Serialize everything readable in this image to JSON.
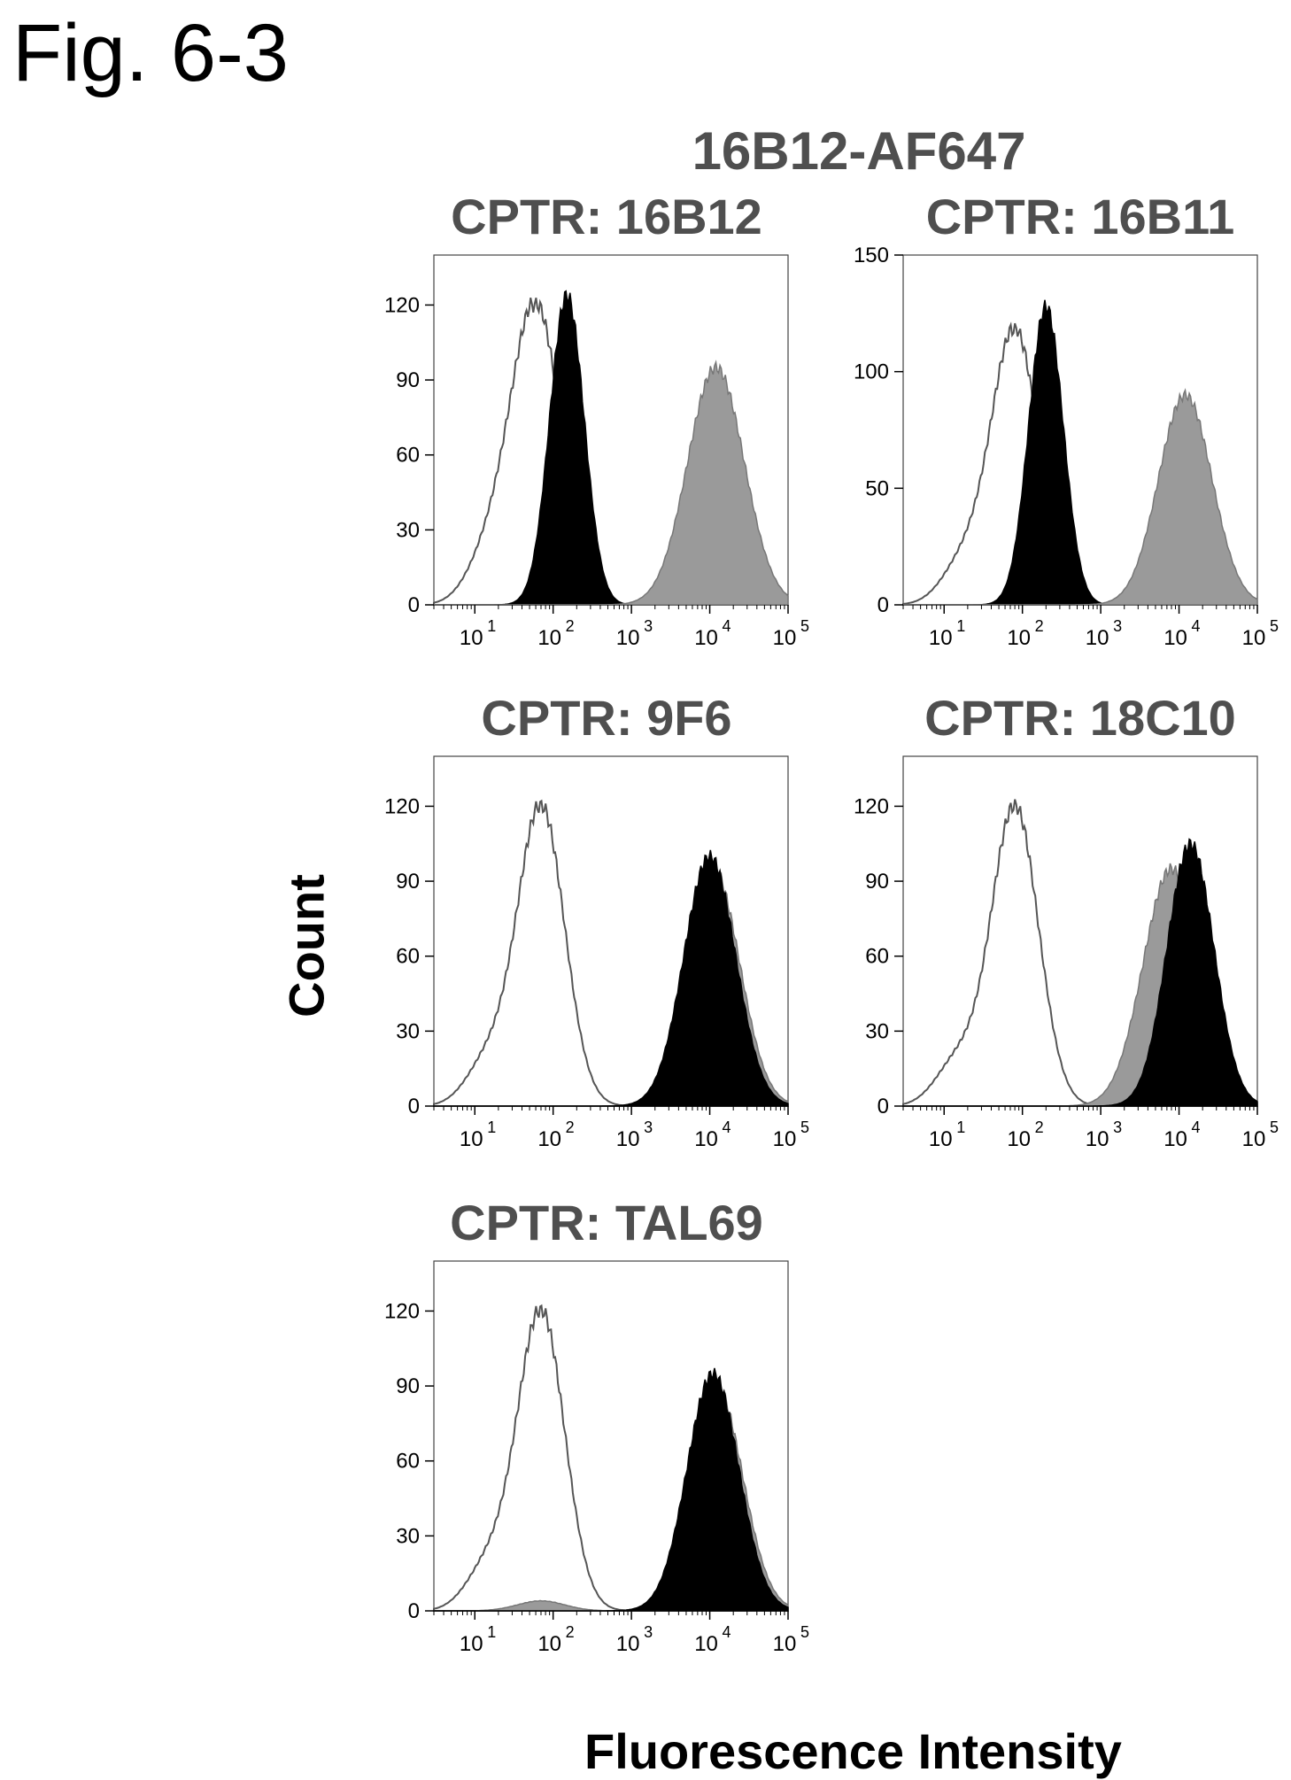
{
  "figure": {
    "label": "Fig. 6-3",
    "reagent": "16B12-AF647",
    "ylabel": "Count",
    "xlabel": "Fluorescence Intensity"
  },
  "colors": {
    "control_outline": "#555555",
    "black_fill": "#000000",
    "gray_fill": "#9a9a9a",
    "title_color": "#4f4f4f"
  },
  "chart_data": [
    {
      "type": "area",
      "title": "CPTR: 16B12",
      "x_scale": "log",
      "xlim": [
        3,
        100000
      ],
      "x_ticks": [
        "10^1",
        "10^2",
        "10^3",
        "10^4",
        "10^5"
      ],
      "ylim": [
        0,
        140
      ],
      "y_ticks": [
        0,
        30,
        60,
        90,
        120
      ],
      "series": [
        {
          "style": "outline",
          "peak_x": 60,
          "peak_y": 120,
          "width_log": 0.32,
          "shoulder_x": 15,
          "shoulder_y": 18
        },
        {
          "style": "black",
          "peak_x": 150,
          "peak_y": 124,
          "width_log": 0.22
        },
        {
          "style": "gray",
          "peak_x": 12000,
          "peak_y": 95,
          "width_log": 0.36
        }
      ]
    },
    {
      "type": "area",
      "title": "CPTR: 16B11",
      "x_scale": "log",
      "xlim": [
        3,
        100000
      ],
      "x_ticks": [
        "10^1",
        "10^2",
        "10^3",
        "10^4",
        "10^5"
      ],
      "ylim": [
        0,
        150
      ],
      "y_ticks": [
        0,
        50,
        100,
        150
      ],
      "series": [
        {
          "style": "outline",
          "peak_x": 80,
          "peak_y": 118,
          "width_log": 0.3,
          "shoulder_x": 18,
          "shoulder_y": 18
        },
        {
          "style": "black",
          "peak_x": 200,
          "peak_y": 128,
          "width_log": 0.22
        },
        {
          "style": "gray",
          "peak_x": 12000,
          "peak_y": 90,
          "width_log": 0.34
        }
      ]
    },
    {
      "type": "area",
      "title": "CPTR: 9F6",
      "x_scale": "log",
      "xlim": [
        3,
        100000
      ],
      "x_ticks": [
        "10^1",
        "10^2",
        "10^3",
        "10^4",
        "10^5"
      ],
      "ylim": [
        0,
        140
      ],
      "y_ticks": [
        0,
        30,
        60,
        90,
        120
      ],
      "series": [
        {
          "style": "outline",
          "peak_x": 70,
          "peak_y": 120,
          "width_log": 0.3,
          "shoulder_x": 15,
          "shoulder_y": 18
        },
        {
          "style": "gray",
          "peak_x": 11000,
          "peak_y": 95,
          "width_log": 0.34
        },
        {
          "style": "black",
          "peak_x": 10000,
          "peak_y": 100,
          "width_log": 0.33
        }
      ]
    },
    {
      "type": "area",
      "title": "CPTR: 18C10",
      "x_scale": "log",
      "xlim": [
        3,
        100000
      ],
      "x_ticks": [
        "10^1",
        "10^2",
        "10^3",
        "10^4",
        "10^5"
      ],
      "ylim": [
        0,
        140
      ],
      "y_ticks": [
        0,
        30,
        60,
        90,
        120
      ],
      "series": [
        {
          "style": "outline",
          "peak_x": 80,
          "peak_y": 120,
          "width_log": 0.3,
          "shoulder_x": 15,
          "shoulder_y": 18
        },
        {
          "style": "gray",
          "peak_x": 8000,
          "peak_y": 95,
          "width_log": 0.36
        },
        {
          "style": "black",
          "peak_x": 14000,
          "peak_y": 105,
          "width_log": 0.3
        }
      ]
    },
    {
      "type": "area",
      "title": "CPTR: TAL69",
      "x_scale": "log",
      "xlim": [
        3,
        100000
      ],
      "x_ticks": [
        "10^1",
        "10^2",
        "10^3",
        "10^4",
        "10^5"
      ],
      "ylim": [
        0,
        140
      ],
      "y_ticks": [
        0,
        30,
        60,
        90,
        120
      ],
      "series": [
        {
          "style": "outline",
          "peak_x": 70,
          "peak_y": 120,
          "width_log": 0.3,
          "shoulder_x": 15,
          "shoulder_y": 18
        },
        {
          "style": "gray",
          "peak_x": 70,
          "peak_y": 4,
          "width_log": 0.3
        },
        {
          "style": "gray",
          "peak_x": 12000,
          "peak_y": 90,
          "width_log": 0.34
        },
        {
          "style": "black",
          "peak_x": 11000,
          "peak_y": 95,
          "width_log": 0.33
        }
      ]
    }
  ]
}
